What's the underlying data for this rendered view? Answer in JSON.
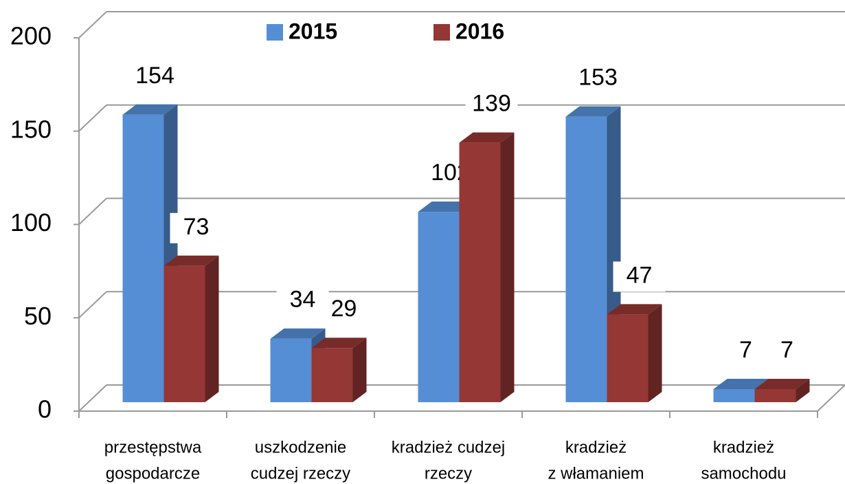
{
  "chart_data": {
    "type": "bar3d",
    "categories": [
      [
        "przestępstwa",
        "gospodarcze"
      ],
      [
        "uszkodzenie",
        "cudzej rzeczy"
      ],
      [
        "kradzież cudzej",
        "rzeczy"
      ],
      [
        "kradzież",
        "z włamaniem"
      ],
      [
        "kradzież",
        "samochodu"
      ]
    ],
    "series": [
      {
        "name": "2015",
        "color": "#558ed5",
        "values": [
          154,
          34,
          102,
          153,
          7
        ]
      },
      {
        "name": "2016",
        "color": "#953735",
        "values": [
          73,
          29,
          139,
          47,
          7
        ]
      }
    ],
    "ylim": [
      0,
      200
    ],
    "yticks": [
      0,
      50,
      100,
      150,
      200
    ],
    "grid": true,
    "legend": "top"
  }
}
